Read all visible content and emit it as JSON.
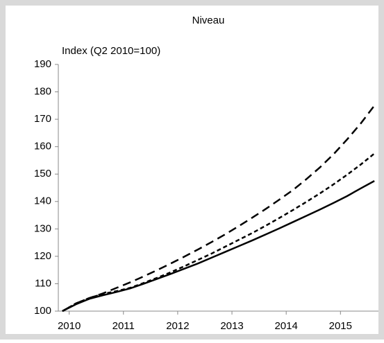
{
  "chart_data": {
    "type": "line",
    "title": "Niveau",
    "y_label": "Index (Q2 2010=100)",
    "x": [
      2010.375,
      2010.625,
      2010.875,
      2011.125,
      2011.375,
      2011.625,
      2011.875,
      2012.125,
      2012.375,
      2012.625,
      2012.875,
      2013.125,
      2013.375,
      2013.625,
      2013.875,
      2014.125,
      2014.375,
      2014.625,
      2014.875,
      2015.125,
      2015.375,
      2015.625,
      2015.875,
      2016.125
    ],
    "series": [
      {
        "color": "#000000",
        "dash": "solid",
        "values": [
          100,
          102.5,
          104.5,
          105.8,
          107,
          108.3,
          110,
          111.8,
          113.6,
          115.5,
          117.4,
          119.5,
          121.6,
          123.7,
          125.8,
          128,
          130.2,
          132.5,
          134.8,
          137.1,
          139.5,
          142,
          144.8,
          147.5
        ]
      },
      {
        "color": "#000000",
        "dash": "long",
        "values": [
          100,
          102.8,
          104.8,
          106.5,
          108.5,
          110.5,
          112.7,
          115,
          117.4,
          119.9,
          122.5,
          125.2,
          128,
          131,
          134.1,
          137.3,
          140.7,
          144.2,
          148.2,
          152.5,
          157.3,
          162.7,
          168.5,
          175
        ]
      },
      {
        "color": "#000000",
        "dash": "short",
        "values": [
          100,
          102.8,
          104.8,
          106.3,
          107.3,
          108.5,
          110.3,
          112.2,
          114.2,
          116.4,
          118.7,
          121,
          123.5,
          126,
          128.5,
          131.2,
          134,
          136.9,
          139.9,
          143,
          146.3,
          149.8,
          153.5,
          157.5
        ]
      }
    ],
    "xlim": [
      2010.3,
      2016.2
    ],
    "xticks": [
      {
        "value": 2010.5,
        "label": "2010"
      },
      {
        "value": 2011.5,
        "label": "2011"
      },
      {
        "value": 2012.5,
        "label": "2012"
      },
      {
        "value": 2013.5,
        "label": "2013"
      },
      {
        "value": 2014.5,
        "label": "2014"
      },
      {
        "value": 2015.5,
        "label": "2015"
      }
    ],
    "ylim": [
      100,
      190
    ],
    "yticks": [
      100,
      110,
      120,
      130,
      140,
      150,
      160,
      170,
      180,
      190
    ],
    "grid": false
  }
}
